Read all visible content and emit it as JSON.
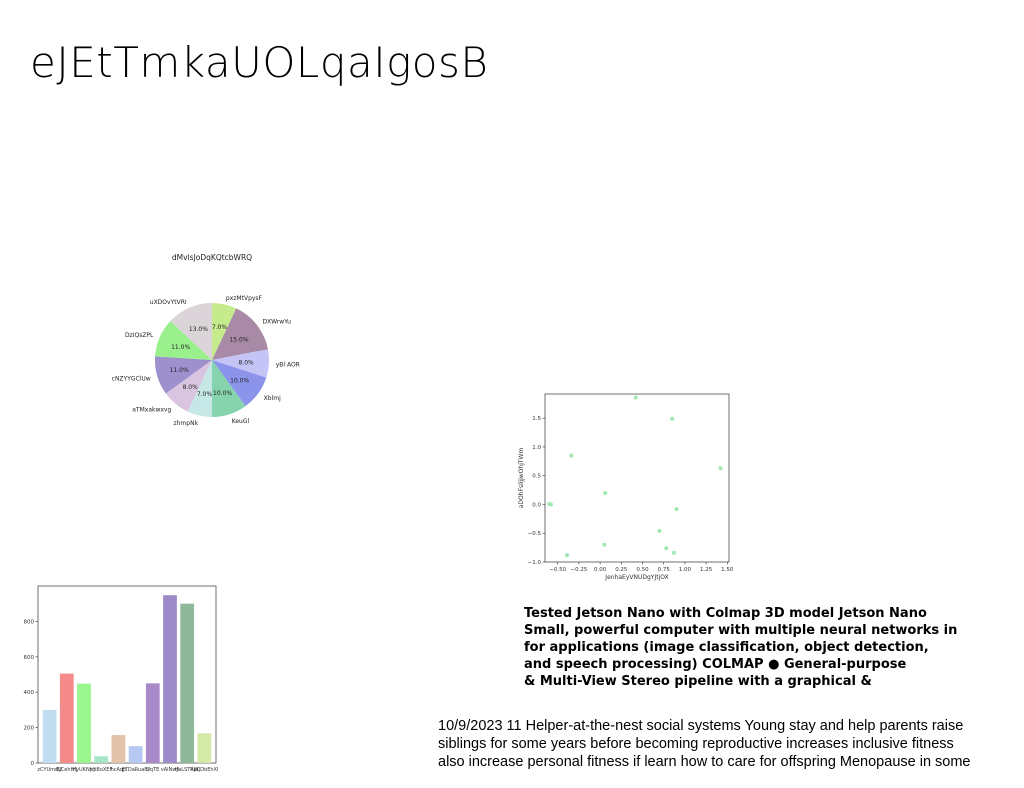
{
  "page": {
    "title": "eJEtTmkaUOLqaIgosB"
  },
  "chart_data": [
    {
      "type": "pie",
      "title": "dMvlsJoDqKQtcbWRQ",
      "slices": [
        {
          "label": "pxzMtVpysF",
          "value": 7.0,
          "color": "#c5eb8c"
        },
        {
          "label": "DXWrwYu",
          "value": 15.0,
          "color": "#a98aa6"
        },
        {
          "label": "yBl AOR",
          "value": 8.0,
          "color": "#c4c4f7"
        },
        {
          "label": "Xblmj",
          "value": 10.0,
          "color": "#8b93ea"
        },
        {
          "label": "KeuGl",
          "value": 10.0,
          "color": "#86d4ad"
        },
        {
          "label": "zhmpNk",
          "value": 7.0,
          "color": "#c5e8e6"
        },
        {
          "label": "aTMxakwxvg",
          "value": 8.0,
          "color": "#d9c5e0"
        },
        {
          "label": "cNZYYGClUw",
          "value": 11.0,
          "color": "#9d90cd"
        },
        {
          "label": "DzIQsZPL",
          "value": 11.0,
          "color": "#9bf08e"
        },
        {
          "label": "uXDOvYtVRI",
          "value": 13.0,
          "color": "#dbd4d8"
        }
      ],
      "start_angle_deg": 90,
      "direction": "clockwise",
      "autopct": "%.1f%%"
    },
    {
      "type": "scatter",
      "xlabel": "JenhaEyVNUDgYJtjOX",
      "ylabel": "aDOhFslijjwOhjTWm",
      "color": "#9fe8b1",
      "xlim": [
        -0.65,
        1.52
      ],
      "ylim": [
        -1.0,
        1.92
      ],
      "xticks": [
        "−0.50",
        "−0.25",
        "0.00",
        "0.25",
        "0.50",
        "0.75",
        "1.00",
        "1.25",
        "1.50"
      ],
      "xtick_values": [
        -0.5,
        -0.25,
        0.0,
        0.25,
        0.5,
        0.75,
        1.0,
        1.25,
        1.5
      ],
      "yticks": [
        "−1.0",
        "−0.5",
        "0.0",
        "0.5",
        "1.0",
        "1.5"
      ],
      "ytick_values": [
        -1.0,
        -0.5,
        0.0,
        0.5,
        1.0,
        1.5
      ],
      "points": [
        {
          "x": 0.42,
          "y": 1.86
        },
        {
          "x": 0.85,
          "y": 1.49
        },
        {
          "x": -0.34,
          "y": 0.85
        },
        {
          "x": 1.42,
          "y": 0.63
        },
        {
          "x": 0.06,
          "y": 0.2
        },
        {
          "x": -0.6,
          "y": 0.01
        },
        {
          "x": -0.58,
          "y": 0.0
        },
        {
          "x": 0.9,
          "y": -0.08
        },
        {
          "x": 0.7,
          "y": -0.46
        },
        {
          "x": 0.05,
          "y": -0.7
        },
        {
          "x": 0.78,
          "y": -0.76
        },
        {
          "x": 0.87,
          "y": -0.84
        },
        {
          "x": -0.39,
          "y": -0.88
        }
      ]
    },
    {
      "type": "bar",
      "categories": [
        "zCYUmdU",
        "EJCehHfj",
        "HyUKNyY",
        "hpBoXEF",
        "hcAqp",
        "FTDaRuaBI",
        "UqTE",
        "vAlNwJl",
        "HaLSTRWj",
        "hpCDbEhXI"
      ],
      "values": [
        300,
        505,
        448,
        38,
        158,
        95,
        450,
        948,
        900,
        168
      ],
      "colors": [
        "#c2dcf0",
        "#f48a8a",
        "#9af58e",
        "#a6e3c9",
        "#e3c4aa",
        "#b7c8f5",
        "#a98ac9",
        "#9c8ac9",
        "#8fb89a",
        "#d4e8a8"
      ],
      "ylim": [
        0,
        1000
      ],
      "yticks": [
        "0",
        "200",
        "400",
        "600",
        "800"
      ],
      "ytick_values": [
        0,
        200,
        400,
        600,
        800
      ]
    }
  ],
  "bold_paragraph": {
    "lines": [
      "Tested Jetson Nano with Colmap 3D model Jetson Nano",
      "Small, powerful computer with multiple neural networks in",
      "for applications (image classification, object detection,",
      "and speech processing) COLMAP ● General-purpose",
      "& Multi-View Stereo pipeline with a graphical &"
    ]
  },
  "body_paragraph": {
    "lines": [
      "10/9/2023 11 Helper-at-the-nest social systems Young stay and help parents raise",
      "siblings for some years before becoming reproductive increases inclusive fitness",
      "also increase personal fitness if learn how to care for offspring Menopause in some"
    ]
  }
}
